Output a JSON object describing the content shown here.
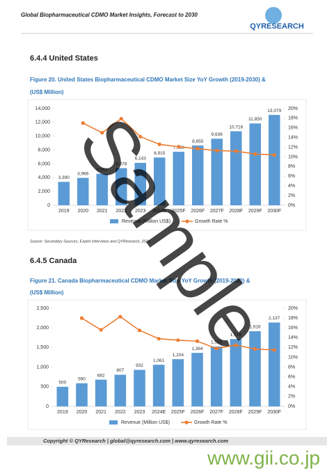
{
  "header": {
    "title": "Global Biopharmaceutical CDMO Market Insights, Forecast to 2030",
    "logo": "QYRESEARCH"
  },
  "sections": [
    {
      "heading": "6.4.4 United States",
      "caption_line1": "Figure 20.  United States Biopharmaceutical CDMO Market Size YoY Growth (2019-2030) &",
      "caption_line2": "(US$ Million)"
    },
    {
      "heading": "6.4.5 Canada",
      "caption_line1": "Figure 21.  Canada Biopharmaceutical CDMO Market Size YoY Growth (2019-2030) &",
      "caption_line2": "(US$ Million)"
    }
  ],
  "source": "Source: Secondary Sources, Expert Interviews and QYResearch, 2024",
  "footer": "Copyright © QYResearch | global@qyresearch.com | www.qyresearch.com",
  "watermark": "Sample",
  "site_mark": "www.gii.co.jp",
  "chart_data": [
    {
      "type": "combo",
      "categories": [
        "2019",
        "2020",
        "2021",
        "2022",
        "2023",
        "2024E",
        "2025F",
        "2026F",
        "2027F",
        "2028F",
        "2029F",
        "2030F"
      ],
      "series": [
        {
          "name": "Revenue (Million US$)",
          "type": "bar",
          "color": "#5b9bd5",
          "values": [
            3390,
            3966,
            4561,
            5378,
            6143,
            6915,
            7750,
            8655,
            9636,
            10716,
            11850,
            13079
          ],
          "value_labels": [
            "3,390",
            "3,966",
            "4,561",
            "5,378",
            "6,143",
            "6,915",
            "7,750",
            "8,655",
            "9,636",
            "10,716",
            "11,850",
            "13,079"
          ]
        },
        {
          "name": "Growth Rate %",
          "type": "line",
          "axis": "y2",
          "color": "#ed7d31",
          "values": [
            null,
            17.0,
            15.0,
            17.9,
            14.2,
            12.6,
            12.1,
            11.7,
            11.3,
            11.2,
            10.6,
            10.4
          ]
        }
      ],
      "ylim": [
        0,
        14000
      ],
      "yticks": [
        0,
        {
          "value": 2000,
          "label": "2,000"
        },
        {
          "value": 4000,
          "label": "4,000"
        },
        {
          "value": 6000,
          "label": "6,000"
        },
        {
          "value": 8000,
          "label": "8,000"
        },
        {
          "value": 10000,
          "label": "10,000"
        },
        {
          "value": 12000,
          "label": "12,000"
        },
        {
          "value": 14000,
          "label": "14,000"
        }
      ],
      "y2lim": [
        0,
        20
      ],
      "y2ticks": [
        {
          "value": 0,
          "label": "0%"
        },
        {
          "value": 2,
          "label": "2%"
        },
        {
          "value": 4,
          "label": "4%"
        },
        {
          "value": 6,
          "label": "6%"
        },
        {
          "value": 8,
          "label": "8%"
        },
        {
          "value": 10,
          "label": "10%"
        },
        {
          "value": 12,
          "label": "12%"
        },
        {
          "value": 14,
          "label": "14%"
        },
        {
          "value": 16,
          "label": "16%"
        },
        {
          "value": 18,
          "label": "18%"
        },
        {
          "value": 20,
          "label": "20%"
        }
      ],
      "legend": "bottom"
    },
    {
      "type": "combo",
      "categories": [
        "2019",
        "2020",
        "2021",
        "2022",
        "2023",
        "2024E",
        "2025F",
        "2026F",
        "2027F",
        "2028F",
        "2029F",
        "2030F"
      ],
      "series": [
        {
          "name": "Revenue (Million US$)",
          "type": "bar",
          "color": "#5b9bd5",
          "values": [
            500,
            590,
            682,
            807,
            932,
            1061,
            1204,
            1364,
            1525,
            1716,
            1916,
            2137
          ],
          "value_labels": [
            "500",
            "590",
            "682",
            "807",
            "932",
            "1,061",
            "1,204",
            "1,364",
            "1,525",
            "1,716",
            "1,916",
            "2,137"
          ]
        },
        {
          "name": "Growth Rate %",
          "type": "line",
          "axis": "y2",
          "color": "#ed7d31",
          "values": [
            null,
            18.0,
            15.6,
            18.3,
            15.5,
            13.8,
            13.5,
            13.3,
            11.8,
            12.5,
            11.7,
            11.5
          ]
        }
      ],
      "ylim": [
        0,
        2500
      ],
      "yticks": [
        0,
        500,
        {
          "value": 1000,
          "label": "1,000"
        },
        {
          "value": 1500,
          "label": "1,500"
        },
        {
          "value": 2000,
          "label": "2,000"
        },
        {
          "value": 2500,
          "label": "2,500"
        }
      ],
      "y2lim": [
        0,
        20
      ],
      "y2ticks": [
        {
          "value": 0,
          "label": "0%"
        },
        {
          "value": 2,
          "label": "2%"
        },
        {
          "value": 4,
          "label": "4%"
        },
        {
          "value": 6,
          "label": "6%"
        },
        {
          "value": 8,
          "label": "8%"
        },
        {
          "value": 10,
          "label": "10%"
        },
        {
          "value": 12,
          "label": "12%"
        },
        {
          "value": 14,
          "label": "14%"
        },
        {
          "value": 16,
          "label": "16%"
        },
        {
          "value": 18,
          "label": "18%"
        },
        {
          "value": 20,
          "label": "20%"
        }
      ],
      "legend": "bottom"
    }
  ]
}
